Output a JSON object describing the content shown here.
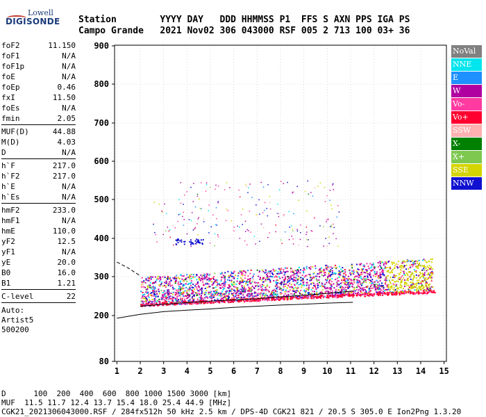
{
  "logo": {
    "top": "Lowell",
    "bottom": "DIGISONDE"
  },
  "header": {
    "line1": "Station        YYYY DAY   DDD HHMMSS P1  FFS S AXN PPS IGA PS",
    "line2": "Campo Grande   2021 Nov02 306 043000 RSF 005 2 713 100 03+ 36"
  },
  "params": {
    "group1": [
      [
        "foF2",
        "11.150"
      ],
      [
        "foF1",
        "N/A"
      ],
      [
        "foF1p",
        "N/A"
      ],
      [
        "foE",
        "N/A"
      ],
      [
        "foEp",
        "0.46"
      ],
      [
        "fxI",
        "11.50"
      ],
      [
        "foEs",
        "N/A"
      ],
      [
        "fmin",
        "2.05"
      ]
    ],
    "group2": [
      [
        "MUF(D)",
        "44.88"
      ],
      [
        "M(D)",
        "4.03"
      ],
      [
        "D",
        "N/A"
      ]
    ],
    "group3": [
      [
        "h`F",
        "217.0"
      ],
      [
        "h`F2",
        "217.0"
      ],
      [
        "h`E",
        "N/A"
      ],
      [
        "h`Es",
        "N/A"
      ]
    ],
    "group4": [
      [
        "hmF2",
        "233.0"
      ],
      [
        "hmF1",
        "N/A"
      ],
      [
        "hmE",
        "110.0"
      ],
      [
        "yF2",
        "12.5"
      ],
      [
        "yF1",
        "N/A"
      ],
      [
        "yE",
        "20.0"
      ],
      [
        "B0",
        "16.0"
      ],
      [
        "B1",
        "1.21"
      ]
    ],
    "group5": [
      [
        "C-level",
        "22"
      ]
    ],
    "auto": [
      "Auto:",
      "Artist5",
      "500200"
    ]
  },
  "legend": [
    {
      "label": "NoVal",
      "color": "#808080"
    },
    {
      "label": "NNE",
      "color": "#00e5ee"
    },
    {
      "label": "E",
      "color": "#1e90ff"
    },
    {
      "label": "W",
      "color": "#b000a0"
    },
    {
      "label": "Vo-",
      "color": "#ff3aa0"
    },
    {
      "label": "Vo+",
      "color": "#ff0030"
    },
    {
      "label": "SSW",
      "color": "#ffb0b0"
    },
    {
      "label": "X-",
      "color": "#008000"
    },
    {
      "label": "X+",
      "color": "#7ec850"
    },
    {
      "label": "SSE",
      "color": "#d4d400"
    },
    {
      "label": "NNW",
      "color": "#1010d0"
    }
  ],
  "footer": {
    "line1": "D      100  200  400  600  800 1000 1500 3000 [km]",
    "line2": "MUF  11.5 11.7 12.4 13.7 15.4 18.0 25.4 44.9 [MHz]",
    "line3": "CGK21_2021306043000.RSF / 284fx512h 50 kHz 2.5 km / DPS-4D CGK21 821 / 20.5 S 305.0 E Ion2Png 1.3.20"
  },
  "chart_data": {
    "type": "scatter",
    "x_ticks": [
      1,
      2,
      3,
      4,
      5,
      6,
      7,
      8,
      9,
      10,
      11,
      12,
      13,
      14,
      15
    ],
    "y_ticks": [
      80,
      200,
      300,
      400,
      500,
      600,
      700,
      800,
      900
    ],
    "xlim": [
      0.9,
      15.1
    ],
    "ylim": [
      80,
      900
    ],
    "y_scale": "nonlinear",
    "x_unit": "MHz",
    "y_unit": "km",
    "traces": [
      {
        "name": "F-trace lower edge",
        "color": "#000000",
        "x": [
          2.0,
          3.0,
          4.0,
          5.0,
          6.0,
          7.0,
          8.0,
          9.0,
          10.0,
          11.1
        ],
        "y": [
          224,
          229,
          233,
          237,
          240,
          243,
          248,
          252,
          257,
          263
        ]
      },
      {
        "name": "profile",
        "color": "#000000",
        "x": [
          1.0,
          2.0,
          3.0,
          4.0,
          5.0,
          6.0,
          7.0,
          8.0,
          9.0,
          10.0,
          11.1
        ],
        "y": [
          193,
          203,
          210,
          214,
          217,
          221,
          224,
          227,
          229,
          232,
          234
        ]
      },
      {
        "name": "dashed",
        "color": "#000000",
        "x": [
          1.0,
          1.5,
          2.0
        ],
        "y": [
          338,
          322,
          302
        ]
      }
    ],
    "echo_band": {
      "fmin": 2.0,
      "fmax": 14.5,
      "lower_start": 225,
      "lower_end": 265,
      "upper_start": 300,
      "upper_end": 350
    }
  }
}
